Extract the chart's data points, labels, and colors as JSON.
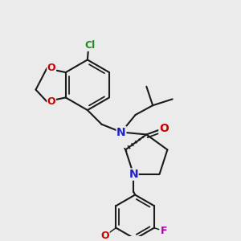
{
  "bg": "#ebebeb",
  "bc": "#1a1a1a",
  "bw": 1.5,
  "figsize": [
    3.0,
    3.0
  ],
  "dpi": 100,
  "colors": {
    "N": "#2020cc",
    "O": "#cc0000",
    "F": "#aa00aa",
    "Cl": "#228B22",
    "C": "#1a1a1a"
  }
}
